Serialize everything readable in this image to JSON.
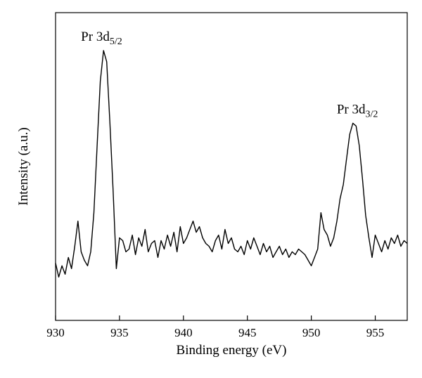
{
  "chart_data": {
    "type": "line",
    "title": "",
    "xlabel": "Binding energy (eV)",
    "ylabel": "Intensity (a.u.)",
    "xlim": [
      930,
      957.5
    ],
    "ylim": [
      0,
      100
    ],
    "xticks": [
      930,
      935,
      940,
      945,
      950,
      955
    ],
    "xtick_labels": [
      "930",
      "935",
      "940",
      "945",
      "950",
      "955"
    ],
    "yticks_labels_visible": false,
    "grid": false,
    "legend": "none",
    "annotations": [
      {
        "base": "Pr 3d",
        "sub": "5/2",
        "x": 933.6,
        "y": 94
      },
      {
        "base": "Pr 3d",
        "sub": "3/2",
        "x": 953.6,
        "y": 68
      }
    ],
    "series": [
      {
        "x": [
          930.0,
          930.25,
          930.5,
          930.75,
          931.0,
          931.25,
          931.5,
          931.75,
          932.0,
          932.25,
          932.5,
          932.75,
          933.0,
          933.25,
          933.5,
          933.75,
          934.0,
          934.25,
          934.5,
          934.75,
          935.0,
          935.25,
          935.5,
          935.75,
          936.0,
          936.25,
          936.5,
          936.75,
          937.0,
          937.25,
          937.5,
          937.75,
          938.0,
          938.25,
          938.5,
          938.75,
          939.0,
          939.25,
          939.5,
          939.75,
          940.0,
          940.25,
          940.5,
          940.75,
          941.0,
          941.25,
          941.5,
          941.75,
          942.0,
          942.25,
          942.5,
          942.75,
          943.0,
          943.25,
          943.5,
          943.75,
          944.0,
          944.25,
          944.5,
          944.75,
          945.0,
          945.25,
          945.5,
          945.75,
          946.0,
          946.25,
          946.5,
          946.75,
          947.0,
          947.25,
          947.5,
          947.75,
          948.0,
          948.25,
          948.5,
          948.75,
          949.0,
          949.25,
          949.5,
          949.75,
          950.0,
          950.25,
          950.5,
          950.75,
          951.0,
          951.25,
          951.5,
          951.75,
          952.0,
          952.25,
          952.5,
          952.75,
          953.0,
          953.25,
          953.5,
          953.75,
          954.0,
          954.25,
          954.5,
          954.75,
          955.0,
          955.25,
          955.5,
          955.75,
          956.0,
          956.25,
          956.5,
          956.75,
          957.0,
          957.25,
          957.5
        ],
        "y": [
          18,
          13,
          17,
          14,
          20,
          16,
          24,
          33,
          22,
          19,
          17,
          22,
          36,
          60,
          83,
          94,
          90,
          68,
          44,
          16,
          27,
          26,
          22,
          23,
          28,
          21,
          27,
          24,
          30,
          22,
          25,
          26,
          20,
          26,
          23,
          28,
          24,
          29,
          22,
          31,
          25,
          27,
          30,
          33,
          29,
          31,
          27,
          25,
          24,
          22,
          26,
          28,
          23,
          30,
          25,
          27,
          23,
          22,
          24,
          21,
          26,
          23,
          27,
          24,
          21,
          25,
          22,
          24,
          20,
          22,
          24,
          21,
          23,
          20,
          22,
          21,
          23,
          22,
          21,
          19,
          17,
          20,
          23,
          36,
          30,
          28,
          24,
          27,
          33,
          41,
          46,
          55,
          64,
          68,
          67,
          60,
          48,
          35,
          27,
          20,
          28,
          25,
          22,
          26,
          23,
          27,
          25,
          28,
          24,
          26,
          25
        ]
      }
    ]
  }
}
